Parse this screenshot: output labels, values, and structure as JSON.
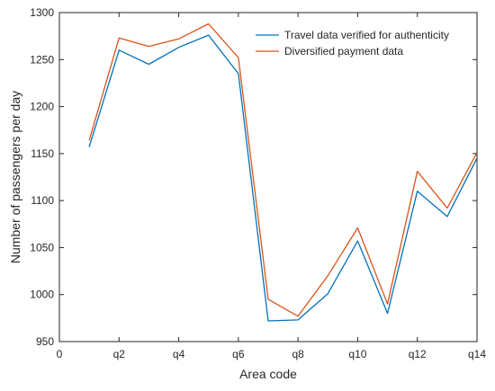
{
  "chart_data": {
    "type": "line",
    "xlabel": "Area code",
    "ylabel": "Number of passengers per day",
    "xlim": [
      0,
      14
    ],
    "ylim": [
      950,
      1300
    ],
    "x_ticks": [
      0,
      2,
      4,
      6,
      8,
      10,
      12,
      14
    ],
    "x_tick_labels": [
      "0",
      "q2",
      "q4",
      "q6",
      "q8",
      "q10",
      "q12",
      "q14"
    ],
    "y_ticks": [
      950,
      1000,
      1050,
      1100,
      1150,
      1200,
      1250,
      1300
    ],
    "y_tick_labels": [
      "950",
      "1000",
      "1050",
      "1100",
      "1150",
      "1200",
      "1250",
      "1300"
    ],
    "x": [
      1,
      2,
      3,
      4,
      5,
      6,
      7,
      8,
      9,
      10,
      11,
      12,
      13,
      14
    ],
    "series": [
      {
        "name": "Travel data verified for authenticity",
        "color": "#0072BD",
        "values": [
          1157,
          1260,
          1245,
          1263,
          1276,
          1235,
          972,
          973,
          1001,
          1057,
          980,
          1110,
          1083,
          1145
        ]
      },
      {
        "name": "Diversified payment data",
        "color": "#D95319",
        "values": [
          1164,
          1273,
          1264,
          1272,
          1288,
          1252,
          995,
          977,
          1020,
          1071,
          990,
          1131,
          1092,
          1151
        ]
      }
    ],
    "legend_position": "top-right",
    "grid": false
  }
}
